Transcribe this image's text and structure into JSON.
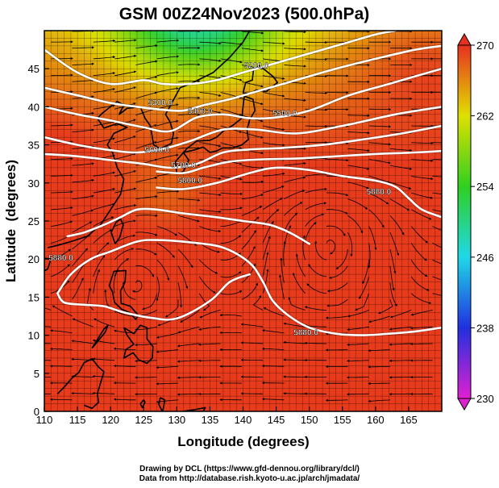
{
  "chart_data": {
    "type": "heatmap",
    "title": "GSM 00Z24Nov2023 (500.0hPa)",
    "xlabel": "Longitude (degrees)",
    "ylabel": "Latitude  (degrees)",
    "xlim": [
      110,
      170
    ],
    "ylim": [
      0,
      50
    ],
    "x_ticks": [
      110,
      115,
      120,
      125,
      130,
      135,
      140,
      145,
      150,
      155,
      160,
      165
    ],
    "y_ticks": [
      0,
      5,
      10,
      15,
      20,
      25,
      30,
      35,
      40,
      45
    ],
    "grid": true,
    "colorbar": {
      "min": 230,
      "max": 270,
      "ticks": [
        230,
        238,
        246,
        254,
        262,
        270
      ],
      "placement": "right",
      "colors": [
        "#e020d0",
        "#2030e0",
        "#20d8e8",
        "#30d020",
        "#e0e000",
        "#e83020"
      ]
    },
    "contour_labels": [
      {
        "text": "5200.0",
        "lon": 142.0,
        "lat": 45.1
      },
      {
        "text": "5300.0",
        "lon": 127.5,
        "lat": 40.2
      },
      {
        "text": "5400.0",
        "lon": 133.5,
        "lat": 39.1
      },
      {
        "text": "5500.0",
        "lon": 146.3,
        "lat": 38.8
      },
      {
        "text": "5600.0",
        "lon": 127.0,
        "lat": 34.0
      },
      {
        "text": "5700.0",
        "lon": 131.0,
        "lat": 32.0
      },
      {
        "text": "5800.0",
        "lon": 132.0,
        "lat": 30.0
      },
      {
        "text": "5880.0",
        "lon": 160.5,
        "lat": 28.5
      },
      {
        "text": "5880.0",
        "lon": 112.5,
        "lat": 19.8
      },
      {
        "text": "5880.0",
        "lon": 149.5,
        "lat": 10.0
      }
    ]
  },
  "credits": {
    "line1": "Drawing by DCL (https://www.gfd-dennou.org/library/dcl/)",
    "line2": "Data from http://database.rish.kyoto-u.ac.jp/arch/jmadata/"
  }
}
